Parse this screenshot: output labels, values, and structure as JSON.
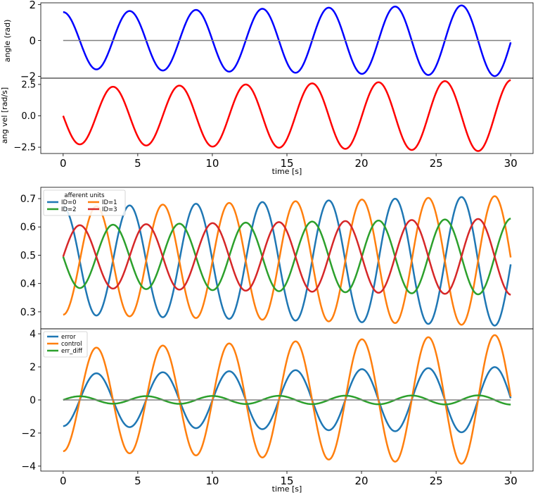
{
  "chart_data": [
    {
      "type": "line",
      "ylabel": "angle (rad)",
      "xlabel": "",
      "xlim": [
        -1.5,
        31.5
      ],
      "ylim": [
        -2.1,
        2.1
      ],
      "yticks": [
        -2,
        0,
        2
      ],
      "yticklabels": [
        "−2",
        "0",
        "2"
      ],
      "series": [
        {
          "color": "#0000ff",
          "t": [
            0,
            0.15,
            30
          ],
          "values": [
            1.58,
            1.55,
            -0.05
          ],
          "wave": {
            "shape": "cos",
            "amp_start": 1.58,
            "amp_end": 2.0,
            "period": 4.45,
            "t_start": 0,
            "t_end": 30,
            "phase": 0
          }
        },
        {
          "color": "#808080",
          "t": [
            0,
            30
          ],
          "values": [
            0,
            0
          ]
        }
      ]
    },
    {
      "type": "line",
      "ylabel": "ang vel [rad/s]",
      "xlabel": "time [s]",
      "xlim": [
        -1.5,
        31.5
      ],
      "ylim": [
        -3.0,
        3.0
      ],
      "yticks": [
        -2.5,
        0.0,
        2.5
      ],
      "yticklabels": [
        "−2.5",
        "0.0",
        "2.5"
      ],
      "xticks": [
        0,
        5,
        10,
        15,
        20,
        25,
        30
      ],
      "series": [
        {
          "color": "#ff0000",
          "wave": {
            "shape": "negsin",
            "amp_start": 2.25,
            "amp_end": 2.85,
            "period": 4.45,
            "t_start": 0,
            "t_end": 30,
            "phase": 0
          }
        }
      ]
    },
    {
      "type": "line",
      "ylabel": "",
      "xlabel": "",
      "xlim": [
        -1.5,
        31.5
      ],
      "ylim": [
        0.24,
        0.74
      ],
      "yticks": [
        0.3,
        0.4,
        0.5,
        0.6,
        0.7
      ],
      "yticklabels": [
        "0.3",
        "0.4",
        "0.5",
        "0.6",
        "0.7"
      ],
      "legend": {
        "title": "afferent units",
        "entries": [
          "ID=0",
          "ID=1",
          "ID=2",
          "ID=3"
        ],
        "placement": "top-left"
      },
      "series": [
        {
          "name": "ID=0",
          "color": "#1f77b4",
          "wave": {
            "shape": "cos",
            "center": 0.48,
            "amp_start": 0.19,
            "amp_end": 0.23,
            "period": 4.45,
            "t_start": 0,
            "t_end": 30,
            "phase": 0
          }
        },
        {
          "name": "ID=1",
          "color": "#ff7f0e",
          "wave": {
            "shape": "negcos",
            "center": 0.48,
            "amp_start": 0.19,
            "amp_end": 0.23,
            "period": 4.45,
            "t_start": 0,
            "t_end": 30,
            "phase": 0
          }
        },
        {
          "name": "ID=2",
          "color": "#2ca02c",
          "wave": {
            "shape": "negsin",
            "center": 0.495,
            "amp_start": 0.11,
            "amp_end": 0.135,
            "period": 4.45,
            "t_start": 0,
            "t_end": 30,
            "phase": 0
          }
        },
        {
          "name": "ID=3",
          "color": "#d62728",
          "wave": {
            "shape": "sin",
            "center": 0.495,
            "amp_start": 0.11,
            "amp_end": 0.135,
            "period": 4.45,
            "t_start": 0,
            "t_end": 30,
            "phase": 0
          }
        }
      ]
    },
    {
      "type": "line",
      "ylabel": "",
      "xlabel": "time [s]",
      "xlim": [
        -1.5,
        31.5
      ],
      "ylim": [
        -4.3,
        4.3
      ],
      "yticks": [
        -4,
        -2,
        0,
        2,
        4
      ],
      "yticklabels": [
        "−4",
        "−2",
        "0",
        "2",
        "4"
      ],
      "xticks": [
        0,
        5,
        10,
        15,
        20,
        25,
        30
      ],
      "legend": {
        "title": "",
        "entries": [
          "error",
          "control",
          "err_diff"
        ],
        "placement": "top-left"
      },
      "series": [
        {
          "name": "error",
          "color": "#1f77b4",
          "wave": {
            "shape": "negcos",
            "center": 0,
            "amp_start": 1.58,
            "amp_end": 2.0,
            "period": 4.45,
            "t_start": 0,
            "t_end": 30,
            "phase": 0
          }
        },
        {
          "name": "control",
          "color": "#ff7f0e",
          "wave": {
            "shape": "negcos",
            "center": 0,
            "amp_start": 3.1,
            "amp_end": 3.95,
            "period": 4.45,
            "t_start": 0,
            "t_end": 30,
            "phase": 0
          }
        },
        {
          "name": "err_diff",
          "color": "#2ca02c",
          "wave": {
            "shape": "sin",
            "center": 0,
            "amp_start": 0.22,
            "amp_end": 0.28,
            "period": 4.45,
            "t_start": 0,
            "t_end": 30,
            "phase": 0
          }
        },
        {
          "color": "#808080",
          "t": [
            0,
            30
          ],
          "values": [
            0,
            0
          ]
        }
      ]
    }
  ]
}
